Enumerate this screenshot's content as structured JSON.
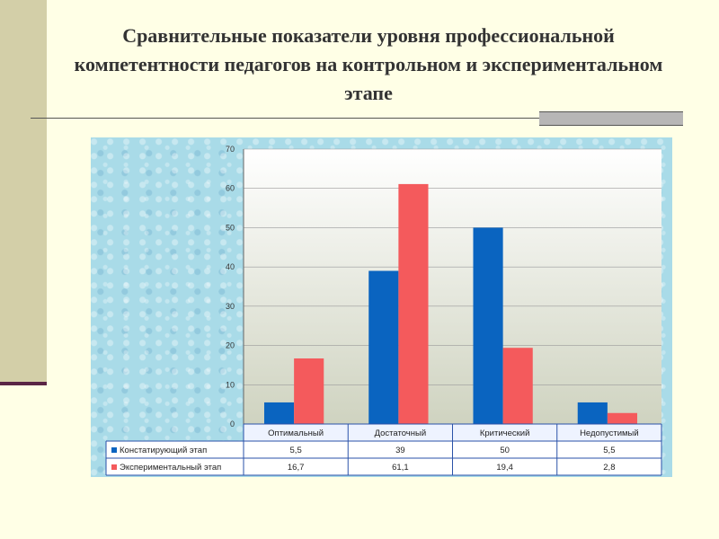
{
  "slide": {
    "title": "Сравнительные показатели уровня профессиональной компетентности педагогов на контрольном и экспериментальном этапе"
  },
  "chart_data": {
    "type": "bar",
    "categories": [
      "Оптимальный",
      "Достаточный",
      "Критический",
      "Недопустимый"
    ],
    "series": [
      {
        "name": "Констатирующий этап",
        "color": "#0a64c0",
        "values": [
          5.5,
          39,
          50,
          5.5
        ],
        "labels": [
          "5,5",
          "39",
          "50",
          "5,5"
        ]
      },
      {
        "name": "Экспериментальный этап",
        "color": "#f45a5c",
        "values": [
          16.7,
          61.1,
          19.4,
          2.8
        ],
        "labels": [
          "16,7",
          "61,1",
          "19,4",
          "2,8"
        ]
      }
    ],
    "ylim": [
      0,
      70
    ],
    "yticks": [
      0,
      10,
      20,
      30,
      40,
      50,
      60,
      70
    ],
    "grid": true,
    "data_table": true
  }
}
